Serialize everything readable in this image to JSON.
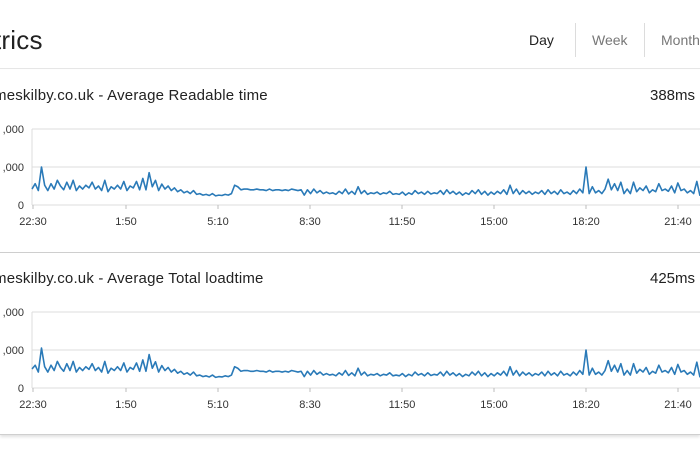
{
  "header": {
    "title": "trics",
    "tabs": [
      {
        "label": "Day",
        "active": true
      },
      {
        "label": "Week",
        "active": false
      },
      {
        "label": "Month",
        "active": false
      }
    ]
  },
  "colors": {
    "series": "#2a7ab8",
    "grid": "#dcdcdc",
    "active_tab_text": "#222222",
    "inactive_tab_text": "#777777"
  },
  "panels": [
    {
      "title": "meskilby.co.uk - Average Readable time",
      "value": "388ms",
      "chart_data": {
        "type": "line",
        "xlabel": "",
        "ylabel": "",
        "ytick_labels": [
          ",000",
          ",000",
          "0"
        ],
        "ytick_values": [
          2000,
          1000,
          0
        ],
        "ylim": [
          0,
          2000
        ],
        "xtick_labels": [
          "22:30",
          "1:50",
          "5:10",
          "8:30",
          "11:50",
          "15:00",
          "18:20",
          "21:40"
        ],
        "grid": "horizontal",
        "series": [
          {
            "values": [
              420,
              560,
              380,
              1000,
              520,
              380,
              560,
              420,
              650,
              500,
              400,
              600,
              420,
              650,
              380,
              500,
              420,
              520,
              450,
              600,
              420,
              500,
              380,
              650,
              350,
              480,
              420,
              520,
              420,
              620,
              380,
              500,
              450,
              620,
              400,
              700,
              400,
              850,
              480,
              650,
              380,
              550,
              420,
              500,
              380,
              450,
              350,
              400,
              320,
              360,
              300,
              380,
              280,
              300,
              260,
              280,
              250,
              300,
              240,
              260,
              250,
              280,
              260,
              300,
              520,
              480,
              400,
              420,
              420,
              400,
              400,
              420,
              400,
              400,
              380,
              420,
              380,
              400,
              400,
              380,
              400,
              380,
              420,
              400,
              380,
              400,
              260,
              400,
              300,
              420,
              320,
              380,
              300,
              340,
              300,
              320,
              280,
              360,
              300,
              420,
              290,
              360,
              280,
              480,
              300,
              380,
              280,
              320,
              300,
              340,
              280,
              320,
              300,
              360,
              280,
              300,
              280,
              340,
              260,
              320,
              280,
              380,
              300,
              340,
              280,
              360,
              290,
              320,
              300,
              380,
              280,
              400,
              300,
              360,
              280,
              340,
              260,
              320,
              280,
              380,
              300,
              400,
              280,
              360,
              260,
              340,
              280,
              360,
              300,
              400,
              280,
              520,
              300,
              420,
              280,
              380,
              300,
              360,
              280,
              340,
              300,
              380,
              280,
              400,
              300,
              360,
              280,
              400,
              300,
              340,
              280,
              380,
              300,
              420,
              320,
              1000,
              300,
              480,
              320,
              380,
              300,
              420,
              680,
              400,
              560,
              380,
              600,
              300,
              420,
              300,
              600,
              350,
              450,
              380,
              500,
              320,
              400,
              350,
              560,
              380,
              420,
              360,
              500,
              320,
              580,
              380,
              420,
              320,
              380,
              300,
              620,
              240
            ]
          }
        ]
      }
    },
    {
      "title": "meskilby.co.uk - Average Total loadtime",
      "value": "425ms",
      "chart_data": {
        "type": "line",
        "xlabel": "",
        "ylabel": "",
        "ytick_labels": [
          ",000",
          ",000",
          "0"
        ],
        "ytick_values": [
          2000,
          1000,
          0
        ],
        "ylim": [
          0,
          2000
        ],
        "xtick_labels": [
          "22:30",
          "1:50",
          "5:10",
          "8:30",
          "11:50",
          "15:00",
          "18:20",
          "21:40"
        ],
        "grid": "horizontal",
        "series": [
          {
            "values": [
              500,
              600,
              420,
              1050,
              560,
              420,
              600,
              460,
              700,
              540,
              440,
              640,
              460,
              700,
              420,
              540,
              460,
              560,
              490,
              640,
              460,
              540,
              420,
              700,
              390,
              520,
              460,
              560,
              460,
              660,
              420,
              540,
              490,
              660,
              440,
              740,
              440,
              880,
              520,
              690,
              420,
              590,
              460,
              540,
              420,
              490,
              390,
              440,
              360,
              400,
              340,
              420,
              320,
              340,
              300,
              320,
              290,
              340,
              280,
              300,
              290,
              320,
              300,
              340,
              560,
              520,
              440,
              460,
              460,
              440,
              440,
              460,
              440,
              440,
              420,
              460,
              420,
              440,
              440,
              420,
              440,
              420,
              460,
              440,
              420,
              440,
              300,
              440,
              340,
              460,
              360,
              420,
              340,
              380,
              340,
              360,
              320,
              400,
              340,
              460,
              330,
              400,
              320,
              520,
              340,
              420,
              320,
              360,
              340,
              380,
              320,
              360,
              340,
              400,
              320,
              340,
              320,
              380,
              300,
              360,
              320,
              420,
              340,
              380,
              320,
              400,
              330,
              360,
              340,
              420,
              320,
              440,
              340,
              400,
              320,
              380,
              300,
              360,
              320,
              420,
              340,
              440,
              320,
              400,
              300,
              380,
              320,
              400,
              340,
              440,
              320,
              560,
              340,
              460,
              320,
              420,
              340,
              400,
              320,
              380,
              340,
              420,
              320,
              440,
              340,
              400,
              320,
              440,
              340,
              380,
              320,
              420,
              340,
              460,
              360,
              1000,
              340,
              520,
              360,
              420,
              340,
              460,
              720,
              440,
              600,
              420,
              640,
              340,
              460,
              340,
              640,
              390,
              490,
              420,
              540,
              360,
              440,
              390,
              600,
              420,
              460,
              400,
              540,
              360,
              620,
              420,
              460,
              360,
              420,
              340,
              680,
              280
            ]
          }
        ]
      }
    }
  ]
}
